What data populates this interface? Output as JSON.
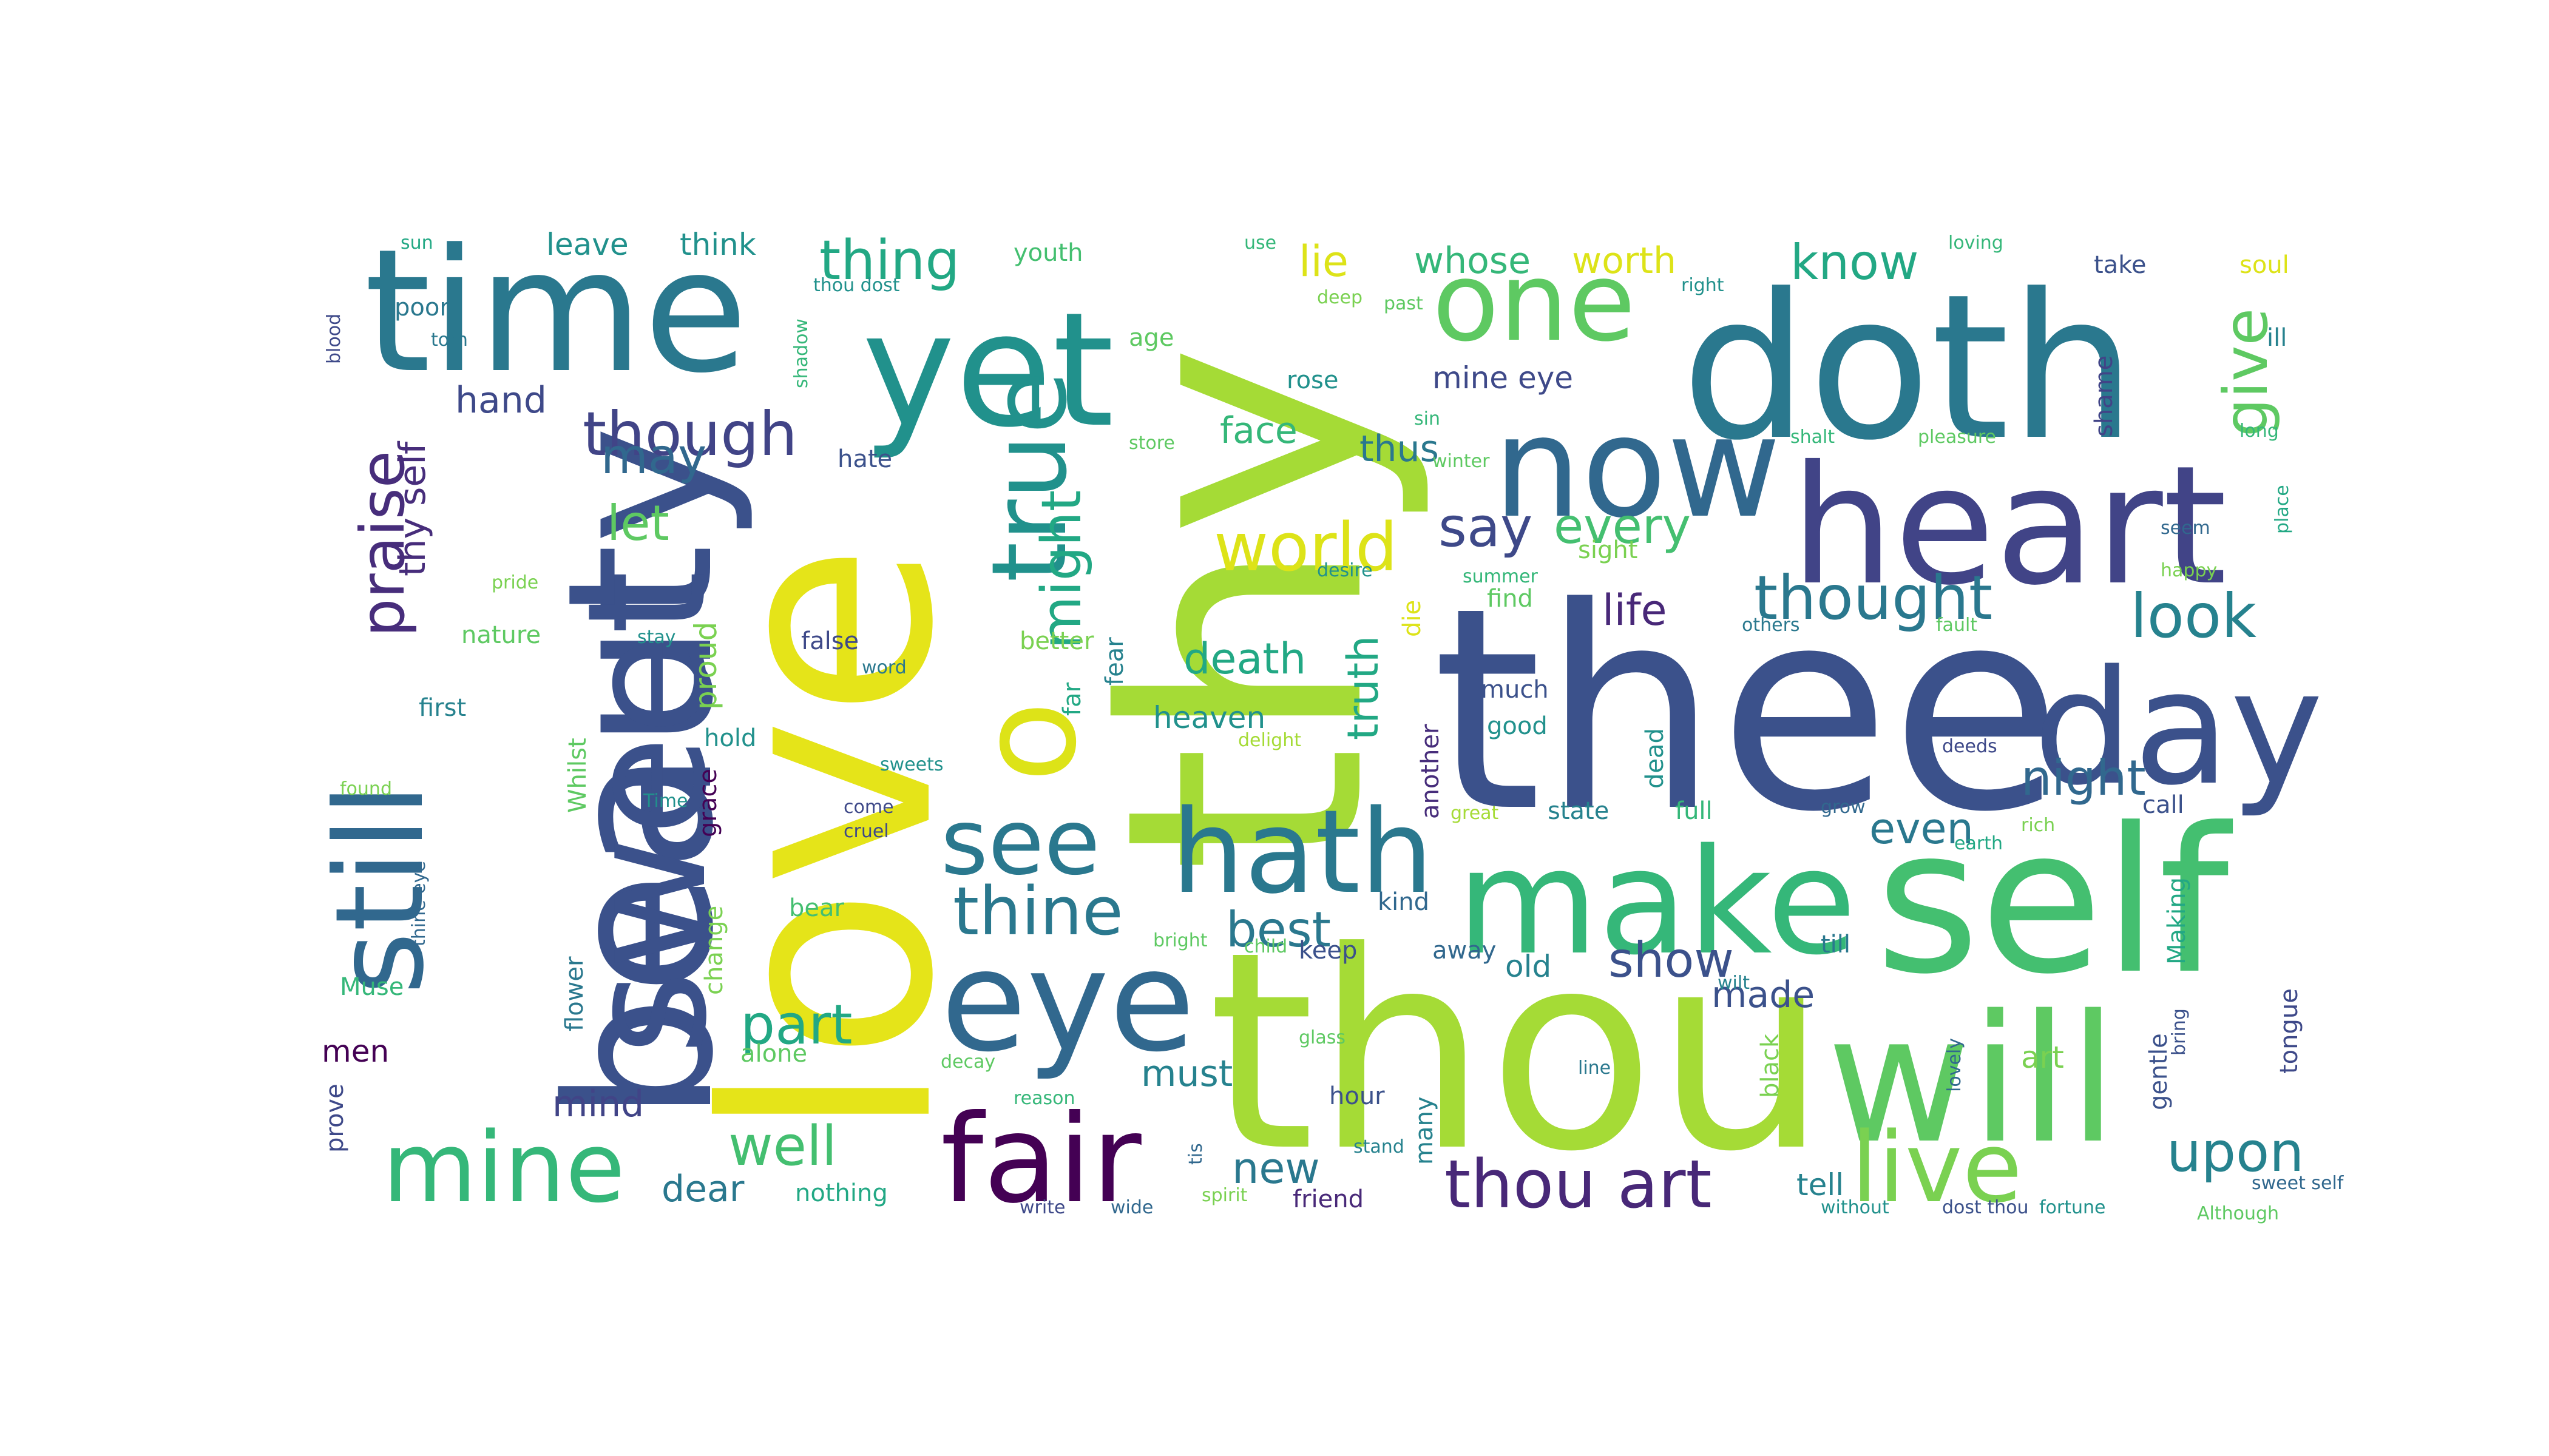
{
  "words": [
    {
      "text": "thee",
      "color": "#3b518b"
    },
    {
      "text": "thou",
      "color": "#a5db36"
    },
    {
      "text": "thy",
      "color": "#a5db36"
    },
    {
      "text": "love",
      "color": "#e5e419"
    },
    {
      "text": "doth",
      "color": "#2a788e"
    },
    {
      "text": "self",
      "color": "#44bf70"
    },
    {
      "text": "will",
      "color": "#5ec962"
    },
    {
      "text": "heart",
      "color": "#414487"
    },
    {
      "text": "beauty",
      "color": "#3b518b"
    },
    {
      "text": "time",
      "color": "#2a788e"
    },
    {
      "text": "sweet",
      "color": "#3b518b"
    },
    {
      "text": "yet",
      "color": "#21918c"
    },
    {
      "text": "now",
      "color": "#31688e"
    },
    {
      "text": "make",
      "color": "#35b779"
    },
    {
      "text": "eye",
      "color": "#31688e"
    },
    {
      "text": "fair",
      "color": "#440154"
    },
    {
      "text": "day",
      "color": "#3b518b"
    },
    {
      "text": "one",
      "color": "#5ec962"
    },
    {
      "text": "hath",
      "color": "#2a788e"
    },
    {
      "text": "o",
      "color": "#dde318"
    },
    {
      "text": "still",
      "color": "#31688e"
    },
    {
      "text": "true",
      "color": "#21918c"
    },
    {
      "text": "live",
      "color": "#7ad151"
    },
    {
      "text": "mine",
      "color": "#35b779"
    },
    {
      "text": "see",
      "color": "#2a788e"
    },
    {
      "text": "thine",
      "color": "#2a788e"
    },
    {
      "text": "world",
      "color": "#dde318"
    },
    {
      "text": "thought",
      "color": "#2a788e"
    },
    {
      "text": "though",
      "color": "#414487"
    },
    {
      "text": "praise",
      "color": "#472d7b"
    },
    {
      "text": "thou art",
      "color": "#482878"
    },
    {
      "text": "upon",
      "color": "#26828e"
    },
    {
      "text": "look",
      "color": "#26828e"
    },
    {
      "text": "thing",
      "color": "#22a884"
    },
    {
      "text": "give",
      "color": "#5ec962"
    },
    {
      "text": "know",
      "color": "#22a884"
    },
    {
      "text": "might",
      "color": "#22a884"
    },
    {
      "text": "say",
      "color": "#3e4989"
    },
    {
      "text": "every",
      "color": "#44bf70"
    },
    {
      "text": "part",
      "color": "#22a884"
    },
    {
      "text": "best",
      "color": "#2a788e"
    },
    {
      "text": "night",
      "color": "#31688e"
    },
    {
      "text": "show",
      "color": "#3b518b"
    },
    {
      "text": "well",
      "color": "#44bf70"
    },
    {
      "text": "may",
      "color": "#31688e"
    },
    {
      "text": "lie",
      "color": "#dde318"
    },
    {
      "text": "whose",
      "color": "#35b779"
    },
    {
      "text": "worth",
      "color": "#dde318"
    },
    {
      "text": "let",
      "color": "#5ec962"
    },
    {
      "text": "life",
      "color": "#482878"
    },
    {
      "text": "death",
      "color": "#22a884"
    },
    {
      "text": "truth",
      "color": "#22a884"
    },
    {
      "text": "even",
      "color": "#2a788e"
    },
    {
      "text": "new",
      "color": "#2a788e"
    },
    {
      "text": "mind",
      "color": "#414487"
    },
    {
      "text": "face",
      "color": "#35b779"
    },
    {
      "text": "hand",
      "color": "#3e4989"
    },
    {
      "text": "made",
      "color": "#3b518b"
    },
    {
      "text": "must",
      "color": "#26828e"
    },
    {
      "text": "dear",
      "color": "#2a788e"
    },
    {
      "text": "thus",
      "color": "#2a788e"
    },
    {
      "text": "mine eye",
      "color": "#3e4989"
    },
    {
      "text": "old",
      "color": "#26828e"
    },
    {
      "text": "heaven",
      "color": "#21918c"
    },
    {
      "text": "art",
      "color": "#7ad151"
    },
    {
      "text": "men",
      "color": "#440154"
    },
    {
      "text": "tell",
      "color": "#26828e"
    },
    {
      "text": "hour",
      "color": "#3b518b"
    },
    {
      "text": "nothing",
      "color": "#22a884"
    },
    {
      "text": "friend",
      "color": "#482878"
    },
    {
      "text": "thy self",
      "color": "#472d7b"
    },
    {
      "text": "leave",
      "color": "#21918c"
    },
    {
      "text": "think",
      "color": "#21918c"
    },
    {
      "text": "youth",
      "color": "#44bf70"
    },
    {
      "text": "poor",
      "color": "#2a788e"
    },
    {
      "text": "hate",
      "color": "#3b518b"
    },
    {
      "text": "false",
      "color": "#3e4989"
    },
    {
      "text": "better",
      "color": "#7ad151"
    },
    {
      "text": "first",
      "color": "#26828e"
    },
    {
      "text": "hold",
      "color": "#21918c"
    },
    {
      "text": "nature",
      "color": "#5ec962"
    },
    {
      "text": "proud",
      "color": "#7ad151"
    },
    {
      "text": "grace",
      "color": "#440154"
    },
    {
      "text": "Whilst",
      "color": "#5ec962"
    },
    {
      "text": "flower",
      "color": "#2a788e"
    },
    {
      "text": "change",
      "color": "#7ad151"
    },
    {
      "text": "bear",
      "color": "#44bf70"
    },
    {
      "text": "alone",
      "color": "#5ec962"
    },
    {
      "text": "Muse",
      "color": "#35b779"
    },
    {
      "text": "prove",
      "color": "#3e4989"
    },
    {
      "text": "fear",
      "color": "#26828e"
    },
    {
      "text": "far",
      "color": "#22a884"
    },
    {
      "text": "age",
      "color": "#5ec962"
    },
    {
      "text": "rose",
      "color": "#21918c"
    },
    {
      "text": "die",
      "color": "#dde318"
    },
    {
      "text": "another",
      "color": "#472d7b"
    },
    {
      "text": "much",
      "color": "#3b518b"
    },
    {
      "text": "good",
      "color": "#21918c"
    },
    {
      "text": "find",
      "color": "#5ec962"
    },
    {
      "text": "dead",
      "color": "#21918c"
    },
    {
      "text": "state",
      "color": "#26828e"
    },
    {
      "text": "full",
      "color": "#35b779"
    },
    {
      "text": "kind",
      "color": "#31688e"
    },
    {
      "text": "keep",
      "color": "#3b518b"
    },
    {
      "text": "away",
      "color": "#31688e"
    },
    {
      "text": "till",
      "color": "#2a788e"
    },
    {
      "text": "call",
      "color": "#3b518b"
    },
    {
      "text": "Making",
      "color": "#22a884"
    },
    {
      "text": "gentle",
      "color": "#3b518b"
    },
    {
      "text": "tongue",
      "color": "#3e4989"
    },
    {
      "text": "black",
      "color": "#7ad151"
    },
    {
      "text": "many",
      "color": "#26828e"
    },
    {
      "text": "shame",
      "color": "#414487"
    },
    {
      "text": "take",
      "color": "#3b518b"
    },
    {
      "text": "soul",
      "color": "#dde318"
    },
    {
      "text": "ill",
      "color": "#26828e"
    },
    {
      "text": "sight",
      "color": "#7ad151"
    },
    {
      "text": "long",
      "color": "#35b779"
    },
    {
      "text": "place",
      "color": "#22a884"
    },
    {
      "text": "loving",
      "color": "#35b779"
    },
    {
      "text": "use",
      "color": "#35b779"
    },
    {
      "text": "sun",
      "color": "#22a884"
    },
    {
      "text": "bring",
      "color": "#3b518b"
    },
    {
      "text": "line",
      "color": "#2a788e"
    },
    {
      "text": "glass",
      "color": "#5ec962"
    },
    {
      "text": "decay",
      "color": "#5ec962"
    },
    {
      "text": "great",
      "color": "#a5db36"
    },
    {
      "text": "bright",
      "color": "#5ec962"
    },
    {
      "text": "desire",
      "color": "#21918c"
    },
    {
      "text": "summer",
      "color": "#35b779"
    },
    {
      "text": "store",
      "color": "#5ec962"
    },
    {
      "text": "winter",
      "color": "#5ec962"
    },
    {
      "text": "pleasure",
      "color": "#5ec962"
    },
    {
      "text": "shalt",
      "color": "#35b779"
    },
    {
      "text": "deeds",
      "color": "#3e4989"
    },
    {
      "text": "rich",
      "color": "#7ad151"
    },
    {
      "text": "earth",
      "color": "#22a884"
    },
    {
      "text": "stand",
      "color": "#26828e"
    },
    {
      "text": "spirit",
      "color": "#7ad151"
    },
    {
      "text": "Time",
      "color": "#21918c"
    },
    {
      "text": "torn",
      "color": "#2a788e"
    },
    {
      "text": "pride",
      "color": "#7ad151"
    },
    {
      "text": "stay",
      "color": "#21918c"
    },
    {
      "text": "come",
      "color": "#3e4989"
    },
    {
      "text": "word",
      "color": "#2a788e"
    },
    {
      "text": "cruel",
      "color": "#3e4989"
    },
    {
      "text": "found",
      "color": "#7ad151"
    },
    {
      "text": "shadow",
      "color": "#35b779"
    },
    {
      "text": "thou dost",
      "color": "#21918c"
    },
    {
      "text": "right",
      "color": "#21918c"
    },
    {
      "text": "sin",
      "color": "#35b779"
    },
    {
      "text": "deep",
      "color": "#7ad151"
    },
    {
      "text": "past",
      "color": "#5ec962"
    },
    {
      "text": "fault",
      "color": "#5ec962"
    },
    {
      "text": "others",
      "color": "#2a788e"
    },
    {
      "text": "happy",
      "color": "#7ad151"
    },
    {
      "text": "seem",
      "color": "#31688e"
    },
    {
      "text": "sweet self",
      "color": "#31688e"
    },
    {
      "text": "fortune",
      "color": "#21918c"
    },
    {
      "text": "without",
      "color": "#21918c"
    },
    {
      "text": "Although",
      "color": "#5ec962"
    },
    {
      "text": "write",
      "color": "#3e4989"
    },
    {
      "text": "wide",
      "color": "#31688e"
    },
    {
      "text": "tis",
      "color": "#31688e"
    },
    {
      "text": "dost thou",
      "color": "#3b518b"
    },
    {
      "text": "lovely",
      "color": "#31688e"
    },
    {
      "text": "wilt",
      "color": "#26828e"
    },
    {
      "text": "delight",
      "color": "#a5db36"
    },
    {
      "text": "sweets",
      "color": "#21918c"
    },
    {
      "text": "child",
      "color": "#5ec962"
    },
    {
      "text": "reason",
      "color": "#35b779"
    },
    {
      "text": "thine eye",
      "color": "#31688e"
    },
    {
      "text": "grow",
      "color": "#31688e"
    },
    {
      "text": "blood",
      "color": "#3e4989"
    }
  ]
}
